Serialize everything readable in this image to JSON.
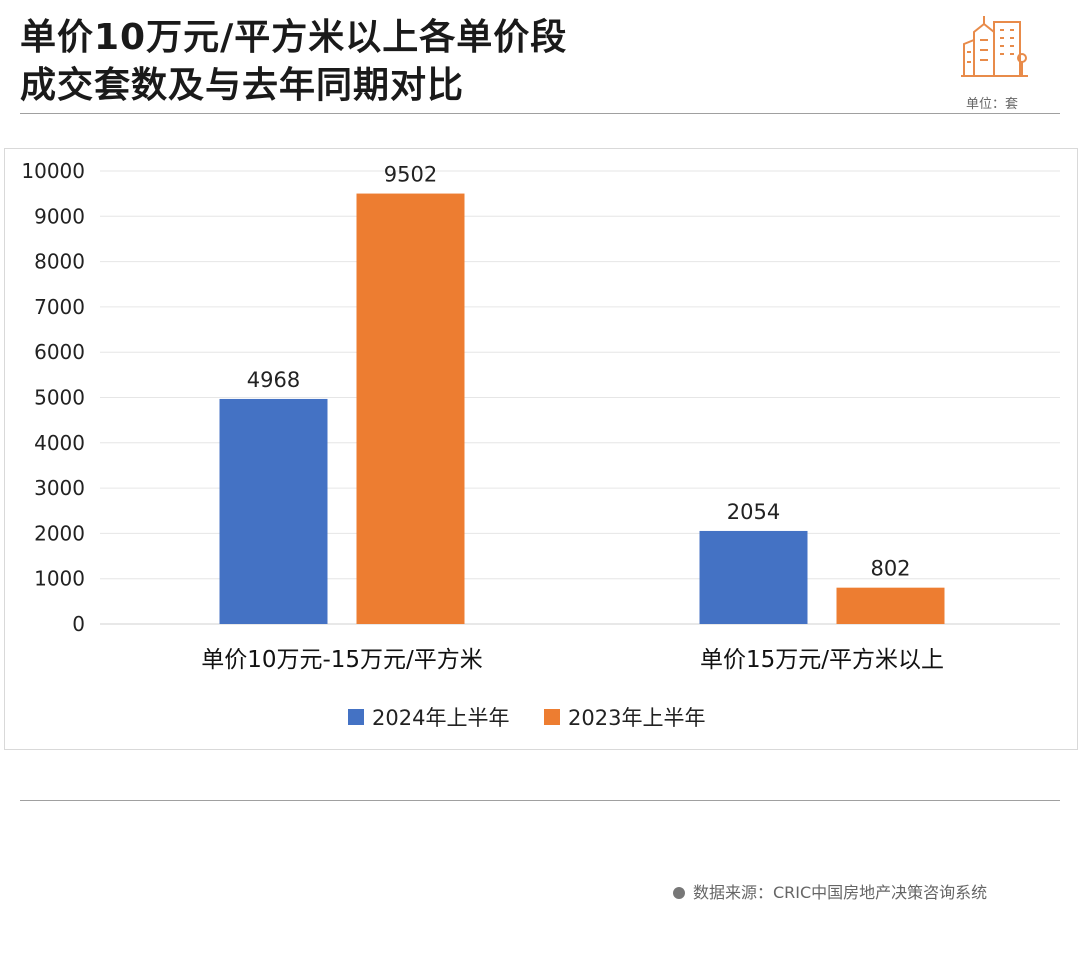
{
  "header": {
    "title_line1": "单价10万元/平方米以上各单价段",
    "title_line2": "成交套数及与去年同期对比",
    "unit": "单位：套",
    "logo_icon": "buildings-icon"
  },
  "footer": {
    "source": "数据来源：CRIC中国房地产决策咨询系统"
  },
  "colors": {
    "series_2024": "#4472C4",
    "series_2023": "#ED7D31",
    "logo": "#E88B4A"
  },
  "chart_data": {
    "type": "bar",
    "title": "单价10万元/平方米以上各单价段成交套数及与去年同期对比",
    "categories": [
      "单价10万元-15万元/平方米",
      "单价15万元/平方米以上"
    ],
    "series": [
      {
        "name": "2024年上半年",
        "values": [
          4968,
          2054
        ]
      },
      {
        "name": "2023年上半年",
        "values": [
          9502,
          802
        ]
      }
    ],
    "ylim": [
      0,
      10000
    ],
    "yticks": [
      0,
      1000,
      2000,
      3000,
      4000,
      5000,
      6000,
      7000,
      8000,
      9000,
      10000
    ],
    "grid": true,
    "legend": "bottom",
    "xlabel": "",
    "ylabel": ""
  }
}
